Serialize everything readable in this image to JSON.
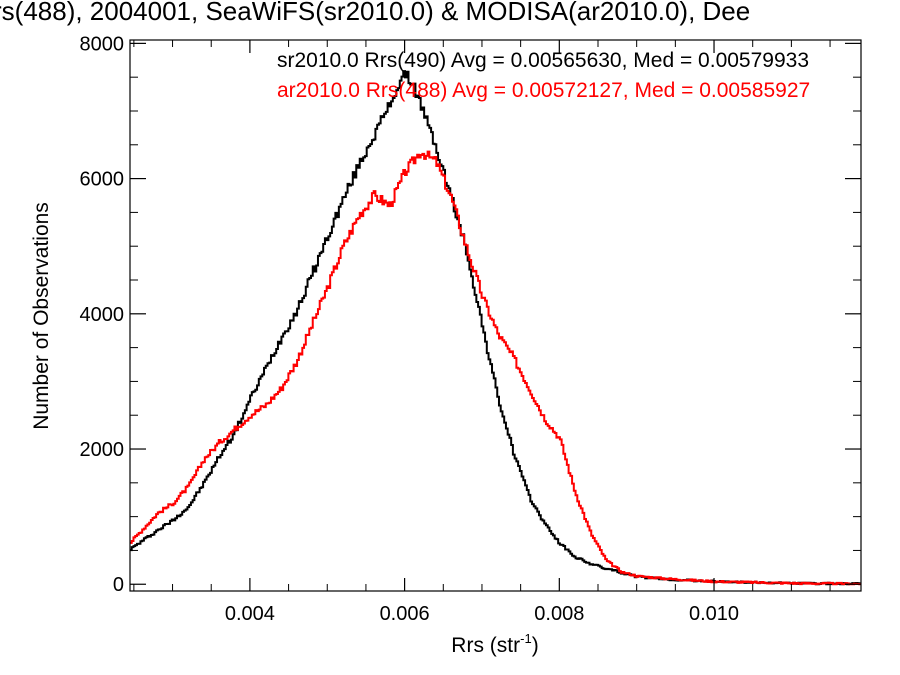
{
  "chart_data": {
    "type": "line",
    "title": "rs(488), 2004001, SeaWiFS(sr2010.0) & MODISA(ar2010.0), Dee",
    "xlabel": "Rrs (str",
    "xlabel_sup": "-1",
    "xlabel_end": ")",
    "ylabel": "Number of Observations",
    "xlim": [
      0.00245,
      0.0119
    ],
    "ylim": [
      -100,
      8050
    ],
    "x_ticks": [
      0.004,
      0.006,
      0.008,
      0.01
    ],
    "x_tick_labels": [
      "0.004",
      "0.006",
      "0.008",
      "0.010"
    ],
    "y_ticks": [
      0,
      2000,
      4000,
      6000,
      8000
    ],
    "y_tick_labels": [
      "0",
      "2000",
      "4000",
      "6000",
      "8000"
    ],
    "grid": false,
    "legend_position": "top-right",
    "series": [
      {
        "name": "sr2010.0 Rrs(490) Avg = 0.00565630, Med = 0.00579933",
        "color": "#000000",
        "x": [
          0.00245,
          0.0028,
          0.003,
          0.0032,
          0.0034,
          0.0036,
          0.0038,
          0.004,
          0.0042,
          0.0044,
          0.0046,
          0.0048,
          0.005,
          0.0052,
          0.0054,
          0.0056,
          0.0058,
          0.0059,
          0.006,
          0.0061,
          0.0062,
          0.0064,
          0.0066,
          0.0068,
          0.007,
          0.0072,
          0.0074,
          0.0076,
          0.0078,
          0.008,
          0.0082,
          0.0084,
          0.0086,
          0.0088,
          0.009,
          0.0094,
          0.01,
          0.011,
          0.0119
        ],
        "y": [
          520,
          800,
          950,
          1150,
          1500,
          1900,
          2250,
          2750,
          3200,
          3650,
          4050,
          4600,
          5150,
          5700,
          6200,
          6650,
          7100,
          7350,
          7550,
          7400,
          7100,
          6450,
          5700,
          4900,
          3800,
          2750,
          1950,
          1300,
          900,
          600,
          400,
          300,
          230,
          170,
          110,
          70,
          40,
          15,
          5
        ]
      },
      {
        "name": "ar2010.0 Rrs(488) Avg = 0.00572127, Med = 0.00585927",
        "color": "#ff0000",
        "x": [
          0.00245,
          0.0028,
          0.003,
          0.0032,
          0.0034,
          0.0036,
          0.0038,
          0.004,
          0.0042,
          0.0044,
          0.0046,
          0.0048,
          0.005,
          0.0052,
          0.0054,
          0.0056,
          0.0058,
          0.006,
          0.0062,
          0.0064,
          0.0066,
          0.0068,
          0.007,
          0.0072,
          0.0074,
          0.0076,
          0.0078,
          0.008,
          0.0082,
          0.0084,
          0.0086,
          0.0088,
          0.009,
          0.0094,
          0.01,
          0.011,
          0.0119
        ],
        "y": [
          620,
          1050,
          1200,
          1450,
          1850,
          2100,
          2300,
          2500,
          2650,
          2900,
          3300,
          3850,
          4400,
          5000,
          5450,
          5750,
          5600,
          6100,
          6400,
          6250,
          5700,
          4950,
          4250,
          3700,
          3350,
          2900,
          2450,
          2150,
          1350,
          750,
          350,
          180,
          120,
          80,
          40,
          15,
          5
        ]
      }
    ]
  }
}
